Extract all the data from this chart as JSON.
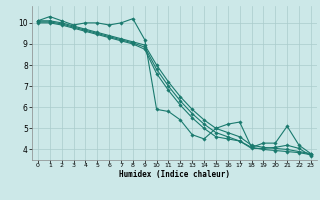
{
  "xlabel": "Humidex (Indice chaleur)",
  "background_color": "#cce8e8",
  "grid_color": "#aacccc",
  "line_color": "#1a7a6e",
  "xlim": [
    -0.5,
    23.5
  ],
  "ylim": [
    3.5,
    10.8
  ],
  "yticks": [
    4,
    5,
    6,
    7,
    8,
    9,
    10
  ],
  "xticks": [
    0,
    1,
    2,
    3,
    4,
    5,
    6,
    7,
    8,
    9,
    10,
    11,
    12,
    13,
    14,
    15,
    16,
    17,
    18,
    19,
    20,
    21,
    22,
    23
  ],
  "series1": [
    [
      0,
      10.1
    ],
    [
      1,
      10.3
    ],
    [
      2,
      10.1
    ],
    [
      3,
      9.9
    ],
    [
      4,
      10.0
    ],
    [
      5,
      10.0
    ],
    [
      6,
      9.9
    ],
    [
      7,
      10.0
    ],
    [
      8,
      10.2
    ],
    [
      9,
      9.2
    ],
    [
      10,
      5.9
    ],
    [
      11,
      5.8
    ],
    [
      12,
      5.4
    ],
    [
      13,
      4.7
    ],
    [
      14,
      4.5
    ],
    [
      15,
      5.0
    ],
    [
      16,
      5.2
    ],
    [
      17,
      5.3
    ],
    [
      18,
      4.1
    ],
    [
      19,
      4.3
    ],
    [
      20,
      4.3
    ],
    [
      21,
      5.1
    ],
    [
      22,
      4.2
    ],
    [
      23,
      3.8
    ]
  ],
  "series2": [
    [
      0,
      10.1
    ],
    [
      1,
      10.1
    ],
    [
      2,
      10.0
    ],
    [
      3,
      9.85
    ],
    [
      4,
      9.7
    ],
    [
      5,
      9.55
    ],
    [
      6,
      9.4
    ],
    [
      7,
      9.25
    ],
    [
      8,
      9.1
    ],
    [
      9,
      8.95
    ],
    [
      10,
      8.0
    ],
    [
      11,
      7.2
    ],
    [
      12,
      6.5
    ],
    [
      13,
      5.9
    ],
    [
      14,
      5.4
    ],
    [
      15,
      5.0
    ],
    [
      16,
      4.8
    ],
    [
      17,
      4.6
    ],
    [
      18,
      4.2
    ],
    [
      19,
      4.1
    ],
    [
      20,
      4.05
    ],
    [
      21,
      4.0
    ],
    [
      22,
      3.9
    ],
    [
      23,
      3.8
    ]
  ],
  "series3": [
    [
      0,
      10.05
    ],
    [
      1,
      10.05
    ],
    [
      2,
      9.95
    ],
    [
      3,
      9.8
    ],
    [
      4,
      9.65
    ],
    [
      5,
      9.5
    ],
    [
      6,
      9.35
    ],
    [
      7,
      9.2
    ],
    [
      8,
      9.05
    ],
    [
      9,
      8.85
    ],
    [
      10,
      7.8
    ],
    [
      11,
      7.0
    ],
    [
      12,
      6.3
    ],
    [
      13,
      5.7
    ],
    [
      14,
      5.2
    ],
    [
      15,
      4.8
    ],
    [
      16,
      4.6
    ],
    [
      17,
      4.4
    ],
    [
      18,
      4.1
    ],
    [
      19,
      4.0
    ],
    [
      20,
      3.95
    ],
    [
      21,
      3.9
    ],
    [
      22,
      3.85
    ],
    [
      23,
      3.75
    ]
  ],
  "series4": [
    [
      0,
      10.0
    ],
    [
      1,
      10.0
    ],
    [
      2,
      9.9
    ],
    [
      3,
      9.75
    ],
    [
      4,
      9.6
    ],
    [
      5,
      9.45
    ],
    [
      6,
      9.3
    ],
    [
      7,
      9.15
    ],
    [
      8,
      9.0
    ],
    [
      9,
      8.75
    ],
    [
      10,
      7.6
    ],
    [
      11,
      6.8
    ],
    [
      12,
      6.1
    ],
    [
      13,
      5.5
    ],
    [
      14,
      5.0
    ],
    [
      15,
      4.6
    ],
    [
      16,
      4.5
    ],
    [
      17,
      4.4
    ],
    [
      18,
      4.05
    ],
    [
      19,
      4.05
    ],
    [
      20,
      4.1
    ],
    [
      21,
      4.2
    ],
    [
      22,
      4.05
    ],
    [
      23,
      3.7
    ]
  ]
}
